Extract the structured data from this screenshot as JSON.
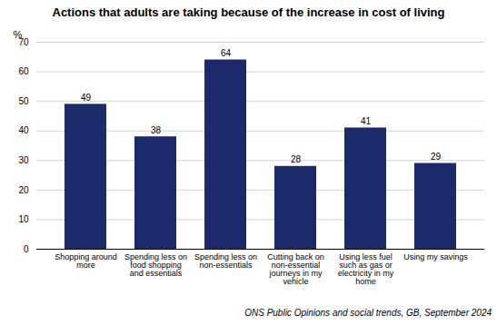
{
  "chart_data": {
    "type": "bar",
    "title": "Actions that adults are taking because of the increase in cost of living",
    "categories": [
      "Shopping around\nmore",
      "Spending less on\nfood shopping\nand essentials",
      "Spending less on\nnon-essentials",
      "Cutting back on\nnon-essential\njourneys in my\nvehicle",
      "Using less fuel\nsuch as gas or\nelectricity in my\nhome",
      "Using my savings"
    ],
    "values": [
      49,
      38,
      64,
      28,
      41,
      29
    ],
    "color": "#1b2a6b",
    "ylabel": "%",
    "ylim": [
      0,
      70
    ],
    "yticks": [
      0,
      10,
      20,
      30,
      40,
      50,
      60,
      70
    ],
    "grid": true,
    "data_labels": true,
    "footnote": "ONS Public Opinions and social trends, GB, September 2024"
  }
}
